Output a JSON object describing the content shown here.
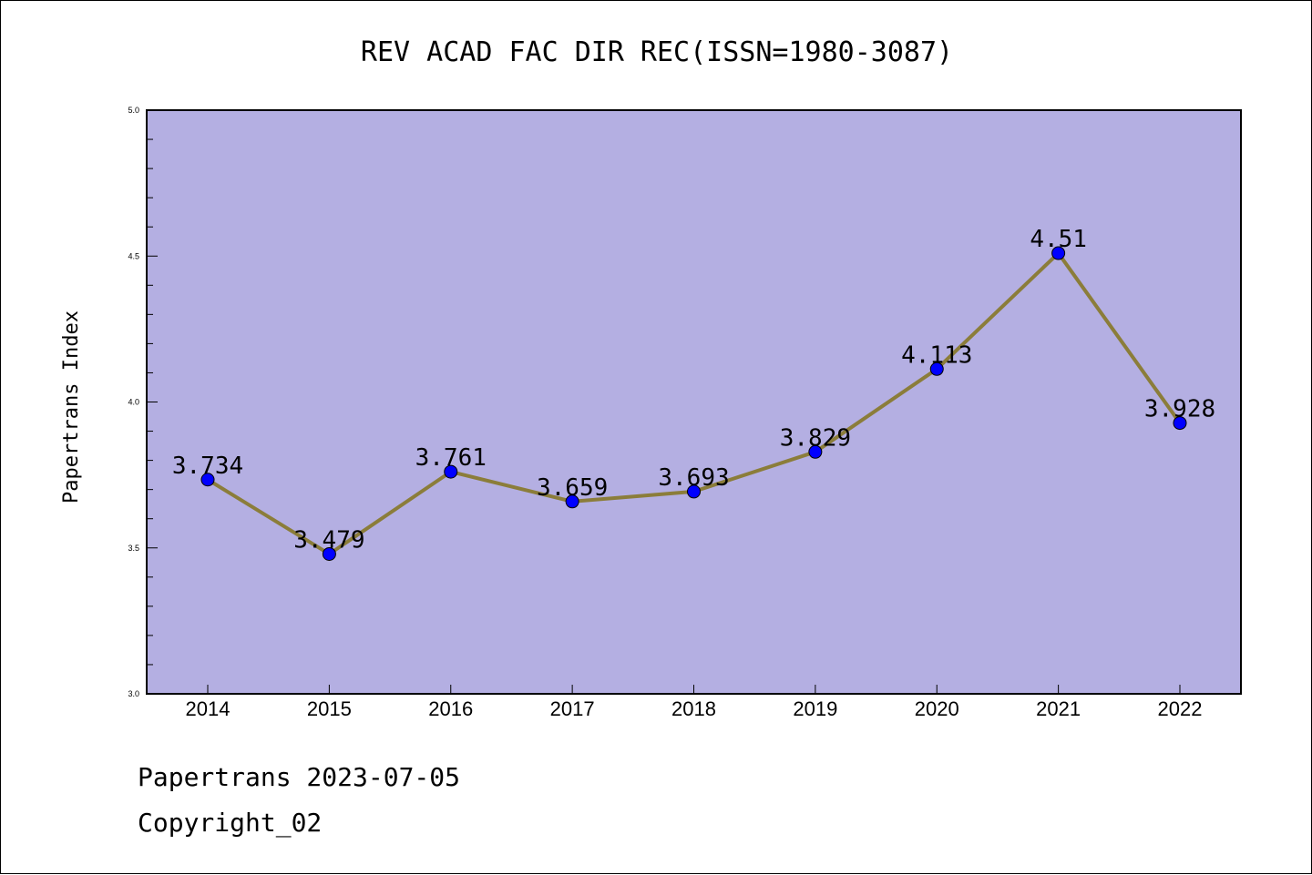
{
  "chart_data": {
    "type": "line",
    "title": "REV ACAD FAC DIR REC(ISSN=1980-3087)",
    "xlabel": "",
    "ylabel": "Papertrans Index",
    "categories": [
      "2014",
      "2015",
      "2016",
      "2017",
      "2018",
      "2019",
      "2020",
      "2021",
      "2022"
    ],
    "values": [
      3.734,
      3.479,
      3.761,
      3.659,
      3.693,
      3.829,
      4.113,
      4.51,
      3.928
    ],
    "data_labels": [
      "3.734",
      "3.479",
      "3.761",
      "3.659",
      "3.693",
      "3.829",
      "4.113",
      "4.51",
      "3.928"
    ],
    "yticks": [
      "3.0",
      "3.5",
      "4.0",
      "4.5",
      "5.0"
    ],
    "ylim": [
      3.0,
      5.0
    ],
    "grid": false,
    "legend": "none",
    "colors": {
      "plot_background": "#b4afe2",
      "line": "#8b7d3a",
      "marker": "#0000ff"
    }
  },
  "footer": {
    "line1": "Papertrans 2023-07-05",
    "line2": "Copyright_02"
  }
}
